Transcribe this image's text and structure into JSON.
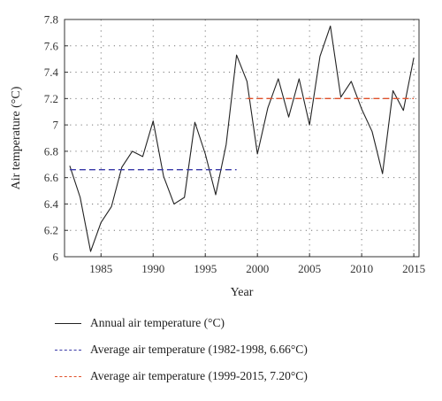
{
  "chart_data": {
    "type": "line",
    "xlabel": "Year",
    "ylabel": "Air temperature (°C)",
    "xlim": [
      1981.5,
      2015.5
    ],
    "ylim": [
      6.0,
      7.8
    ],
    "x_ticks": [
      1985,
      1990,
      1995,
      2000,
      2005,
      2010,
      2015
    ],
    "y_ticks": [
      6,
      6.2,
      6.4,
      6.6,
      6.8,
      7,
      7.2,
      7.4,
      7.6,
      7.8
    ],
    "grid": true,
    "legend_position": "below",
    "series": [
      {
        "name": "Annual air temperature (°C)",
        "style": "solid",
        "color": "#222222",
        "x": [
          1982,
          1983,
          1984,
          1985,
          1986,
          1987,
          1988,
          1989,
          1990,
          1991,
          1992,
          1993,
          1994,
          1995,
          1996,
          1997,
          1998,
          1999,
          2000,
          2001,
          2002,
          2003,
          2004,
          2005,
          2006,
          2007,
          2008,
          2009,
          2010,
          2011,
          2012,
          2013,
          2014,
          2015
        ],
        "y": [
          6.69,
          6.45,
          6.04,
          6.26,
          6.38,
          6.68,
          6.8,
          6.76,
          7.03,
          6.61,
          6.4,
          6.45,
          7.02,
          6.78,
          6.47,
          6.85,
          7.53,
          7.33,
          6.78,
          7.13,
          7.35,
          7.06,
          7.35,
          7.0,
          7.52,
          7.75,
          7.21,
          7.33,
          7.12,
          6.95,
          6.63,
          7.26,
          7.11,
          7.51
        ]
      },
      {
        "name": "Average air temperature (1982-1998, 6.66°C)",
        "style": "dashed",
        "color": "#3a3aa8",
        "x": [
          1982,
          1998
        ],
        "y": [
          6.66,
          6.66
        ]
      },
      {
        "name": "Average air temperature (1999-2015, 7.20°C)",
        "style": "dashed",
        "color": "#e0502a",
        "x": [
          1999,
          2015
        ],
        "y": [
          7.2,
          7.2
        ]
      }
    ]
  }
}
